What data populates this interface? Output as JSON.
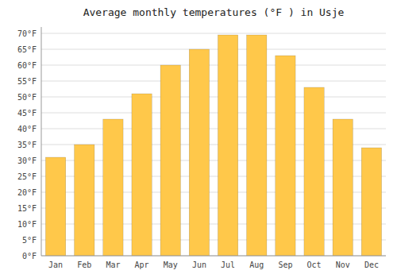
{
  "chart_data": {
    "type": "bar",
    "title": "Average monthly temperatures (°F ) in Usje",
    "categories": [
      "Jan",
      "Feb",
      "Mar",
      "Apr",
      "May",
      "Jun",
      "Jul",
      "Aug",
      "Sep",
      "Oct",
      "Nov",
      "Dec"
    ],
    "values": [
      31,
      35,
      43,
      51,
      60,
      65,
      69.5,
      69.5,
      63,
      53,
      43,
      34
    ],
    "color": "#FFC84A",
    "ylim": [
      0,
      72
    ],
    "yticks": [
      {
        "value": 0,
        "label": "0°F"
      },
      {
        "value": 5,
        "label": "5°F"
      },
      {
        "value": 10,
        "label": "10°F"
      },
      {
        "value": 15,
        "label": "15°F"
      },
      {
        "value": 20,
        "label": "20°F"
      },
      {
        "value": 25,
        "label": "25°F"
      },
      {
        "value": 30,
        "label": "30°F"
      },
      {
        "value": 35,
        "label": "35°F"
      },
      {
        "value": 40,
        "label": "40°F"
      },
      {
        "value": 45,
        "label": "45°F"
      },
      {
        "value": 50,
        "label": "50°F"
      },
      {
        "value": 55,
        "label": "55°F"
      },
      {
        "value": 60,
        "label": "60°F"
      },
      {
        "value": 65,
        "label": "65°F"
      },
      {
        "value": 70,
        "label": "70°F"
      }
    ],
    "grid": true
  }
}
